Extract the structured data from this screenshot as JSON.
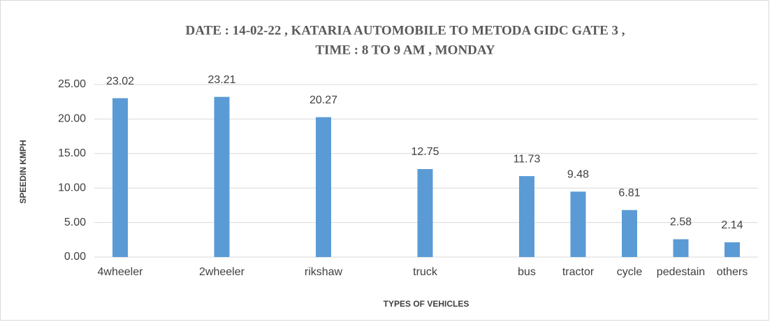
{
  "chart_data": {
    "type": "bar",
    "title": [
      "DATE : 14-02-22 , KATARIA AUTOMOBILE TO METODA GIDC GATE 3 ,",
      "TIME : 8 TO 9 AM , MONDAY"
    ],
    "x_label": "TYPES OF VEHICLES",
    "y_label": "SPEEDIN KMPH",
    "categories": [
      "4wheeler",
      "2wheeler",
      "rikshaw",
      "truck",
      "bus",
      "tractor",
      "cycle",
      "pedestain",
      "others"
    ],
    "values": [
      23.02,
      23.21,
      20.27,
      12.75,
      11.73,
      9.48,
      6.81,
      2.58,
      2.14
    ],
    "color": "#5b9bd5",
    "ylim": [
      0,
      25
    ],
    "yticks": [
      {
        "value": 0,
        "label": "0.00"
      },
      {
        "value": 5,
        "label": "5.00"
      },
      {
        "value": 10,
        "label": "10.00"
      },
      {
        "value": 15,
        "label": "15.00"
      },
      {
        "value": 20,
        "label": "20.00"
      },
      {
        "value": 25,
        "label": "25.00"
      }
    ],
    "grid": true
  }
}
